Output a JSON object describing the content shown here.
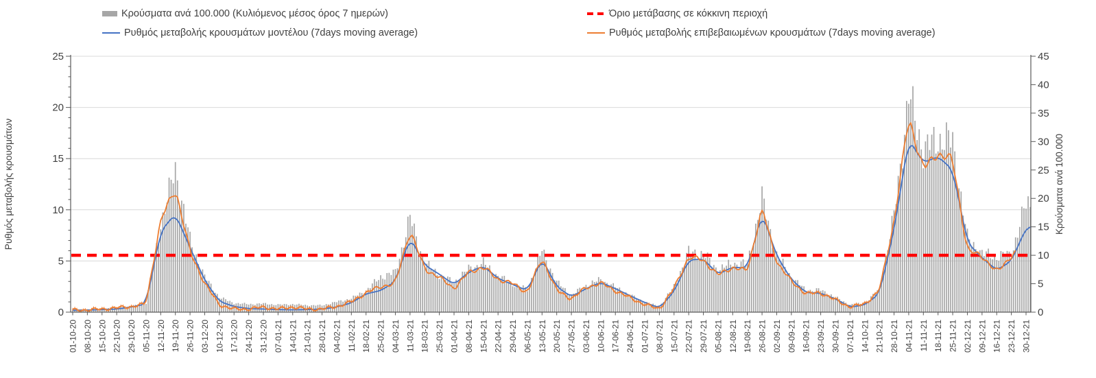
{
  "legend": {
    "items": [
      {
        "id": "cases_bars",
        "label": "Κρούσματα ανά 100.000 (Κυλιόμενος μέσος όρος 7 ημερών)",
        "color": "#A6A6A6",
        "marker": "bar"
      },
      {
        "id": "threshold",
        "label": "Όριο μετάβασης σε κόκκινη περιοχή",
        "color": "#FF0000",
        "marker": "dashed-line"
      },
      {
        "id": "model_rate",
        "label": "Ρυθμός μεταβολής κρουσμάτων μοντέλου (7days moving average)",
        "color": "#4472C4",
        "marker": "line"
      },
      {
        "id": "confirmed_rate",
        "label": "Ρυθμός μεταβολής επιβεβαιωμένων κρουσμάτων (7days moving average)",
        "color": "#ED7D31",
        "marker": "line"
      }
    ]
  },
  "chart_data": {
    "type": "combo",
    "subtypes": [
      "bar",
      "line",
      "line",
      "threshold-line"
    ],
    "title": "",
    "grid": "horizontal",
    "legend_position": "top",
    "left_axis": {
      "label": "Ρυθμός μεταβολής κρουσμάτων",
      "min": 0,
      "max": 25,
      "major_ticks": [
        0,
        5,
        10,
        15,
        20,
        25
      ],
      "minor_step": 1
    },
    "right_axis": {
      "label": "Κρούσματα ανά 100.000",
      "min": 0,
      "max": 45,
      "major_ticks": [
        0,
        5,
        10,
        15,
        20,
        25,
        30,
        35,
        40,
        45
      ]
    },
    "threshold": {
      "name": "Όριο μετάβασης σε κόκκινη περιοχή",
      "axis": "right",
      "value": 10,
      "color": "#FF0000",
      "style": "dashed"
    },
    "x_sampling": "weekly anchors, daily bars",
    "x_weekly_labels": [
      "01-10-20",
      "08-10-20",
      "15-10-20",
      "22-10-20",
      "29-10-20",
      "05-11-20",
      "12-11-20",
      "19-11-20",
      "26-11-20",
      "03-12-20",
      "10-12-20",
      "17-12-20",
      "24-12-20",
      "31-12-20",
      "07-01-21",
      "14-01-21",
      "21-01-21",
      "28-01-21",
      "04-02-21",
      "11-02-21",
      "18-02-21",
      "25-02-21",
      "04-03-21",
      "11-03-21",
      "18-03-21",
      "25-03-21",
      "01-04-21",
      "08-04-21",
      "15-04-21",
      "22-04-21",
      "29-04-21",
      "06-05-21",
      "13-05-21",
      "20-05-21",
      "27-05-21",
      "03-06-21",
      "10-06-21",
      "17-06-21",
      "24-06-21",
      "01-07-21",
      "08-07-21",
      "15-07-21",
      "22-07-21",
      "29-07-21",
      "05-08-21",
      "12-08-21",
      "19-08-21",
      "26-08-21",
      "02-09-21",
      "09-09-21",
      "16-09-21",
      "23-09-21",
      "30-09-21",
      "07-10-21",
      "14-10-21",
      "21-10-21",
      "28-10-21",
      "04-11-21",
      "11-11-21",
      "18-11-21",
      "25-11-21",
      "02-12-21",
      "09-12-21",
      "16-12-21",
      "23-12-21",
      "30-12-21"
    ],
    "series": [
      {
        "name": "Κρούσματα ανά 100.000 (Κυλιόμενος μέσος όρος 7 ημερών)",
        "type": "bar",
        "axis": "right",
        "color": "#A6A6A6",
        "weekly_values": [
          0.45,
          0.5,
          0.6,
          0.8,
          1.0,
          1.6,
          15.5,
          25.2,
          12.6,
          6.2,
          2.6,
          1.6,
          1.4,
          1.5,
          1.3,
          1.4,
          1.2,
          1.2,
          1.8,
          2.4,
          3.8,
          6.2,
          7.0,
          16.6,
          8.6,
          6.6,
          5.2,
          7.6,
          8.6,
          6.3,
          5.0,
          4.0,
          10.8,
          5.3,
          3.0,
          4.7,
          5.7,
          4.4,
          3.0,
          1.8,
          1.0,
          4.5,
          10.6,
          10.2,
          7.4,
          8.6,
          8.4,
          20.0,
          10.0,
          6.2,
          3.8,
          3.9,
          2.6,
          1.3,
          1.6,
          4.0,
          17.0,
          38.0,
          28.5,
          30.5,
          30.0,
          13.0,
          10.3,
          9.8,
          10.2,
          19.0
        ],
        "tail": [
          {
            "day": 456,
            "value": 19.3
          },
          {
            "day": 457,
            "value": 18.8
          }
        ]
      },
      {
        "name": "Ρυθμός μεταβολής κρουσμάτων μοντέλου (7days moving average)",
        "type": "line",
        "axis": "left",
        "color": "#4472C4",
        "weekly_values": [
          0.18,
          0.2,
          0.25,
          0.3,
          0.5,
          0.8,
          7.9,
          9.6,
          6.3,
          3.1,
          1.05,
          0.55,
          0.35,
          0.3,
          0.25,
          0.22,
          0.25,
          0.3,
          0.5,
          0.9,
          1.8,
          2.1,
          3.0,
          7.3,
          4.6,
          3.7,
          2.7,
          3.9,
          4.5,
          3.3,
          2.7,
          2.1,
          5.2,
          2.5,
          1.5,
          2.3,
          2.9,
          2.3,
          1.6,
          0.95,
          0.4,
          2.0,
          5.1,
          5.2,
          3.7,
          4.4,
          4.3,
          9.7,
          5.5,
          3.2,
          1.9,
          1.85,
          1.3,
          0.5,
          0.7,
          1.8,
          8.0,
          16.9,
          14.6,
          15.2,
          13.9,
          6.8,
          5.3,
          4.1,
          5.0,
          8.2
        ],
        "tail": [
          {
            "day": 457,
            "value": 8.45
          }
        ]
      },
      {
        "name": "Ρυθμός μεταβολής επιβεβαιωμένων κρουσμάτων (7days moving average)",
        "type": "line",
        "axis": "left",
        "color": "#ED7D31",
        "weekly_values": [
          0.2,
          0.22,
          0.3,
          0.42,
          0.55,
          0.8,
          9.0,
          12.1,
          5.9,
          2.8,
          0.7,
          0.3,
          0.3,
          0.5,
          0.3,
          0.5,
          0.3,
          0.3,
          0.55,
          1.0,
          1.9,
          2.5,
          2.8,
          8.0,
          4.2,
          3.4,
          2.3,
          3.9,
          4.4,
          3.2,
          2.8,
          1.9,
          5.3,
          2.1,
          1.3,
          2.4,
          2.85,
          2.1,
          1.4,
          0.75,
          0.3,
          2.3,
          5.4,
          5.1,
          3.6,
          4.4,
          4.0,
          10.2,
          4.9,
          3.0,
          1.8,
          1.9,
          1.2,
          0.5,
          0.8,
          2.1,
          8.8,
          19.0,
          14.0,
          15.5,
          14.9,
          6.0,
          5.5,
          3.9,
          5.5,
          null
        ],
        "tail": [
          {
            "day": 450,
            "value": 5.9
          }
        ]
      }
    ]
  }
}
